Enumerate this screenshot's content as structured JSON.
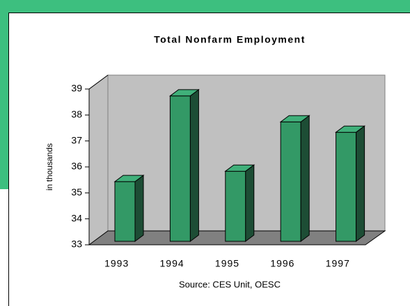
{
  "chart_data": {
    "type": "bar3d",
    "title": "Total Nonfarm Employment",
    "y_label": "in thousands",
    "source": "Source:  CES Unit, OESC",
    "categories": [
      "1993",
      "1994",
      "1995",
      "1996",
      "1997"
    ],
    "values": [
      35.3,
      38.6,
      35.7,
      37.6,
      37.2
    ],
    "color": "#339966",
    "ylim": [
      33,
      39
    ],
    "yticks": [
      33,
      34,
      35,
      36,
      37,
      38,
      39
    ],
    "grid": false
  }
}
